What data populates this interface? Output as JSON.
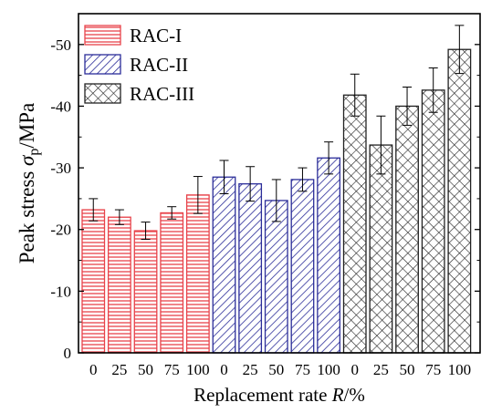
{
  "chart_data": {
    "type": "bar",
    "title": "",
    "xlabel_prefix": "Replacement rate ",
    "xlabel_var": "R",
    "xlabel_suffix": "/%",
    "ylabel_prefix": "Peak stress ",
    "ylabel_symbol": "σ",
    "ylabel_sub": "p",
    "ylabel_suffix": "/MPa",
    "ylim": [
      0,
      -55
    ],
    "yticks": [
      0,
      -10,
      -20,
      -30,
      -40,
      -50
    ],
    "ytick_labels": [
      "0",
      "-10",
      "-20",
      "-30",
      "-40",
      "-50"
    ],
    "categories": [
      "0",
      "25",
      "50",
      "75",
      "100"
    ],
    "legend_position": "top-left",
    "grid": false,
    "series": [
      {
        "name": "RAC-I",
        "color": "#e8434a",
        "pattern": "horizontal-lines",
        "values": [
          -23.2,
          -22.0,
          -19.8,
          -22.7,
          -25.6
        ],
        "errors": [
          1.8,
          1.2,
          1.4,
          1.0,
          3.0
        ]
      },
      {
        "name": "RAC-II",
        "color": "#2b2d99",
        "pattern": "diagonal-lines",
        "values": [
          -28.5,
          -27.4,
          -24.7,
          -28.1,
          -31.6
        ],
        "errors": [
          2.7,
          2.8,
          3.4,
          1.9,
          2.6
        ]
      },
      {
        "name": "RAC-III",
        "color": "#222222",
        "pattern": "crosshatch",
        "values": [
          -41.8,
          -33.7,
          -40.0,
          -42.6,
          -49.2
        ],
        "errors": [
          3.4,
          4.7,
          3.1,
          3.6,
          3.9
        ]
      }
    ]
  }
}
